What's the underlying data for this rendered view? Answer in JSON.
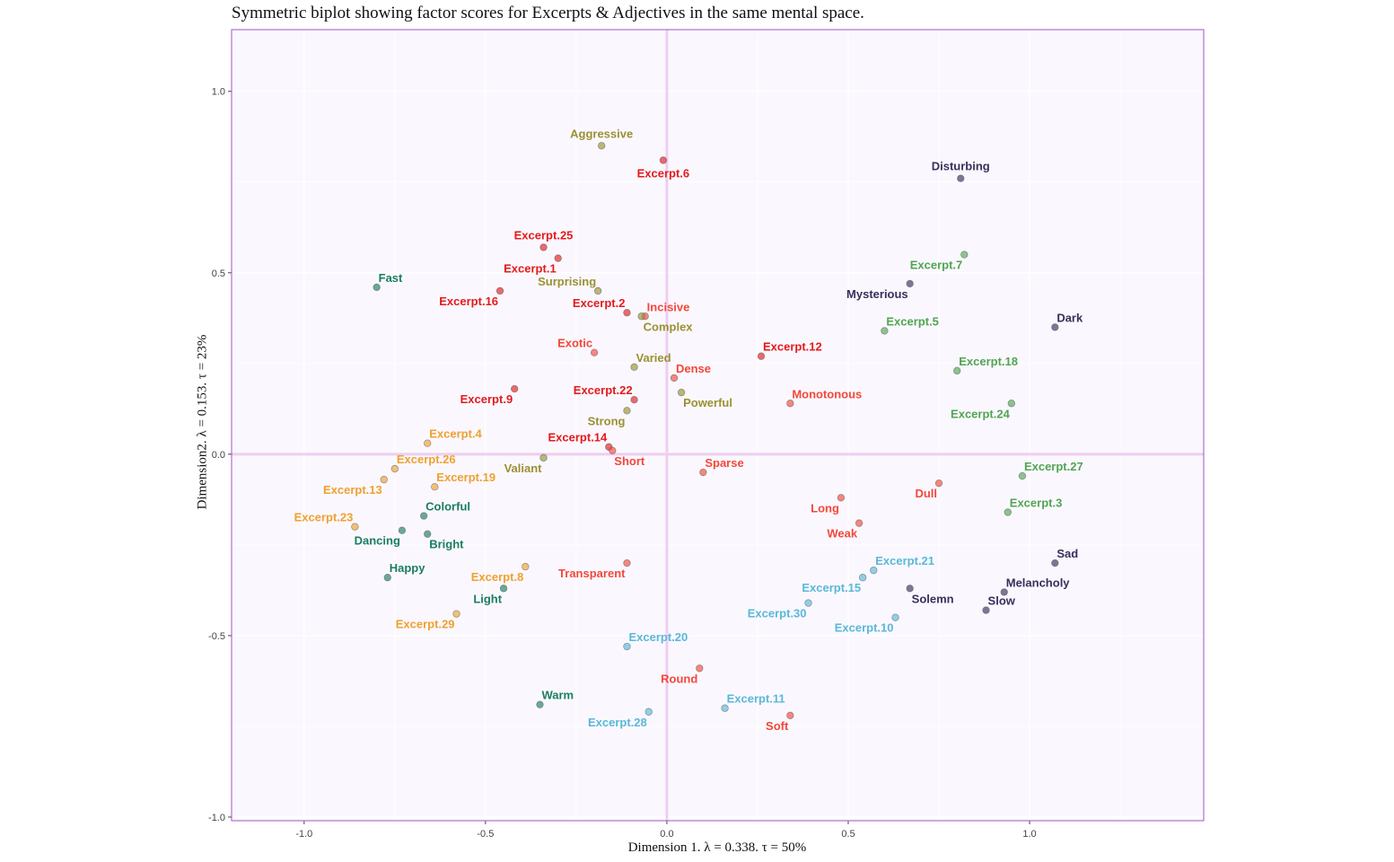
{
  "chart_data": {
    "type": "scatter",
    "title": "Symmetric biplot showing factor scores for Excerpts & Adjectives in the same mental space.",
    "xlabel": "Dimension 1.   λ = 0.338.  τ = 50%",
    "ylabel": "Dimension2.  λ = 0.153.  τ = 23%",
    "xlim": [
      -1.2,
      1.48
    ],
    "ylim": [
      -1.01,
      1.17
    ],
    "x_ticks": [
      "-1.0",
      "-0.5",
      "0.0",
      "0.5",
      "1.0"
    ],
    "y_ticks": [
      "-1.0",
      "-0.5",
      "0.0",
      "0.5",
      "1.0"
    ],
    "grid": true,
    "groups": {
      "red": "#e41a1c",
      "salmon": "#f4473a",
      "olive": "#9b9032",
      "darkgreen": "#1b7d60",
      "purple": "#3a2e5c",
      "green": "#52a552",
      "orange": "#f0a030",
      "cyan": "#5ab8d8"
    },
    "points": [
      {
        "label": "Aggressive",
        "x": -0.18,
        "y": 0.85,
        "group": "olive",
        "pos": "above"
      },
      {
        "label": "Excerpt.6",
        "x": -0.01,
        "y": 0.81,
        "group": "red",
        "pos": "below"
      },
      {
        "label": "Disturbing",
        "x": 0.81,
        "y": 0.76,
        "group": "purple",
        "pos": "above"
      },
      {
        "label": "Excerpt.25",
        "x": -0.34,
        "y": 0.57,
        "group": "red",
        "pos": "above"
      },
      {
        "label": "Excerpt.1",
        "x": -0.3,
        "y": 0.54,
        "group": "red",
        "pos": "below-left"
      },
      {
        "label": "Excerpt.7",
        "x": 0.82,
        "y": 0.55,
        "group": "green",
        "pos": "below-left"
      },
      {
        "label": "Fast",
        "x": -0.8,
        "y": 0.46,
        "group": "darkgreen",
        "pos": "above-right"
      },
      {
        "label": "Mysterious",
        "x": 0.67,
        "y": 0.47,
        "group": "purple",
        "pos": "below-left"
      },
      {
        "label": "Surprising",
        "x": -0.19,
        "y": 0.45,
        "group": "olive",
        "pos": "above-left"
      },
      {
        "label": "Excerpt.16",
        "x": -0.46,
        "y": 0.45,
        "group": "red",
        "pos": "below-left"
      },
      {
        "label": "Excerpt.2",
        "x": -0.11,
        "y": 0.39,
        "group": "red",
        "pos": "above-left"
      },
      {
        "label": "Incisive",
        "x": -0.06,
        "y": 0.38,
        "group": "salmon",
        "pos": "above-right"
      },
      {
        "label": "Complex",
        "x": -0.07,
        "y": 0.38,
        "group": "olive",
        "pos": "below-right"
      },
      {
        "label": "Dark",
        "x": 1.07,
        "y": 0.35,
        "group": "purple",
        "pos": "above-right"
      },
      {
        "label": "Excerpt.5",
        "x": 0.6,
        "y": 0.34,
        "group": "green",
        "pos": "above-right"
      },
      {
        "label": "Exotic",
        "x": -0.2,
        "y": 0.28,
        "group": "salmon",
        "pos": "above-left"
      },
      {
        "label": "Excerpt.12",
        "x": 0.26,
        "y": 0.27,
        "group": "red",
        "pos": "above-right"
      },
      {
        "label": "Varied",
        "x": -0.09,
        "y": 0.24,
        "group": "olive",
        "pos": "above-right"
      },
      {
        "label": "Dense",
        "x": 0.02,
        "y": 0.21,
        "group": "salmon",
        "pos": "above-right"
      },
      {
        "label": "Excerpt.18",
        "x": 0.8,
        "y": 0.23,
        "group": "green",
        "pos": "above-right"
      },
      {
        "label": "Excerpt.9",
        "x": -0.42,
        "y": 0.18,
        "group": "red",
        "pos": "below-left"
      },
      {
        "label": "Powerful",
        "x": 0.04,
        "y": 0.17,
        "group": "olive",
        "pos": "below-right"
      },
      {
        "label": "Excerpt.22",
        "x": -0.09,
        "y": 0.15,
        "group": "red",
        "pos": "above-left"
      },
      {
        "label": "Monotonous",
        "x": 0.34,
        "y": 0.14,
        "group": "salmon",
        "pos": "above-right"
      },
      {
        "label": "Excerpt.24",
        "x": 0.95,
        "y": 0.14,
        "group": "green",
        "pos": "below-left"
      },
      {
        "label": "Strong",
        "x": -0.11,
        "y": 0.12,
        "group": "olive",
        "pos": "below-left"
      },
      {
        "label": "Excerpt.4",
        "x": -0.66,
        "y": 0.03,
        "group": "orange",
        "pos": "above-right"
      },
      {
        "label": "Excerpt.14",
        "x": -0.16,
        "y": 0.02,
        "group": "red",
        "pos": "above-left"
      },
      {
        "label": "Short",
        "x": -0.15,
        "y": 0.01,
        "group": "salmon",
        "pos": "below-right"
      },
      {
        "label": "Valiant",
        "x": -0.34,
        "y": -0.01,
        "group": "olive",
        "pos": "below-left"
      },
      {
        "label": "Excerpt.26",
        "x": -0.75,
        "y": -0.04,
        "group": "orange",
        "pos": "above-right"
      },
      {
        "label": "Sparse",
        "x": 0.1,
        "y": -0.05,
        "group": "salmon",
        "pos": "above-right"
      },
      {
        "label": "Excerpt.27",
        "x": 0.98,
        "y": -0.06,
        "group": "green",
        "pos": "above-right"
      },
      {
        "label": "Excerpt.13",
        "x": -0.78,
        "y": -0.07,
        "group": "orange",
        "pos": "below-left"
      },
      {
        "label": "Excerpt.19",
        "x": -0.64,
        "y": -0.09,
        "group": "orange",
        "pos": "above-right"
      },
      {
        "label": "Dull",
        "x": 0.75,
        "y": -0.08,
        "group": "salmon",
        "pos": "below-left"
      },
      {
        "label": "Long",
        "x": 0.48,
        "y": -0.12,
        "group": "salmon",
        "pos": "below-left"
      },
      {
        "label": "Excerpt.3",
        "x": 0.94,
        "y": -0.16,
        "group": "green",
        "pos": "above-right"
      },
      {
        "label": "Colorful",
        "x": -0.67,
        "y": -0.17,
        "group": "darkgreen",
        "pos": "above-right"
      },
      {
        "label": "Weak",
        "x": 0.53,
        "y": -0.19,
        "group": "salmon",
        "pos": "below-left"
      },
      {
        "label": "Excerpt.23",
        "x": -0.86,
        "y": -0.2,
        "group": "orange",
        "pos": "above-left"
      },
      {
        "label": "Dancing",
        "x": -0.73,
        "y": -0.21,
        "group": "darkgreen",
        "pos": "below-left"
      },
      {
        "label": "Bright",
        "x": -0.66,
        "y": -0.22,
        "group": "darkgreen",
        "pos": "below-right"
      },
      {
        "label": "Sad",
        "x": 1.07,
        "y": -0.3,
        "group": "purple",
        "pos": "above-right"
      },
      {
        "label": "Transparent",
        "x": -0.11,
        "y": -0.3,
        "group": "salmon",
        "pos": "below-left"
      },
      {
        "label": "Excerpt.8",
        "x": -0.39,
        "y": -0.31,
        "group": "orange",
        "pos": "below-left"
      },
      {
        "label": "Excerpt.21",
        "x": 0.57,
        "y": -0.32,
        "group": "cyan",
        "pos": "above-right"
      },
      {
        "label": "Happy",
        "x": -0.77,
        "y": -0.34,
        "group": "darkgreen",
        "pos": "above-right"
      },
      {
        "label": "Excerpt.15",
        "x": 0.54,
        "y": -0.34,
        "group": "cyan",
        "pos": "below-left"
      },
      {
        "label": "Light",
        "x": -0.45,
        "y": -0.37,
        "group": "darkgreen",
        "pos": "below-left"
      },
      {
        "label": "Solemn",
        "x": 0.67,
        "y": -0.37,
        "group": "purple",
        "pos": "below-right"
      },
      {
        "label": "Melancholy",
        "x": 0.93,
        "y": -0.38,
        "group": "purple",
        "pos": "above-right"
      },
      {
        "label": "Excerpt.30",
        "x": 0.39,
        "y": -0.41,
        "group": "cyan",
        "pos": "below-left"
      },
      {
        "label": "Slow",
        "x": 0.88,
        "y": -0.43,
        "group": "purple",
        "pos": "above-right"
      },
      {
        "label": "Excerpt.29",
        "x": -0.58,
        "y": -0.44,
        "group": "orange",
        "pos": "below-left"
      },
      {
        "label": "Excerpt.10",
        "x": 0.63,
        "y": -0.45,
        "group": "cyan",
        "pos": "below-left"
      },
      {
        "label": "Excerpt.20",
        "x": -0.11,
        "y": -0.53,
        "group": "cyan",
        "pos": "above-right"
      },
      {
        "label": "Round",
        "x": 0.09,
        "y": -0.59,
        "group": "salmon",
        "pos": "below-left"
      },
      {
        "label": "Warm",
        "x": -0.35,
        "y": -0.69,
        "group": "darkgreen",
        "pos": "above-right"
      },
      {
        "label": "Excerpt.11",
        "x": 0.16,
        "y": -0.7,
        "group": "cyan",
        "pos": "above-right"
      },
      {
        "label": "Excerpt.28",
        "x": -0.05,
        "y": -0.71,
        "group": "cyan",
        "pos": "below-left"
      },
      {
        "label": "Soft",
        "x": 0.34,
        "y": -0.72,
        "group": "salmon",
        "pos": "below-left"
      }
    ]
  }
}
